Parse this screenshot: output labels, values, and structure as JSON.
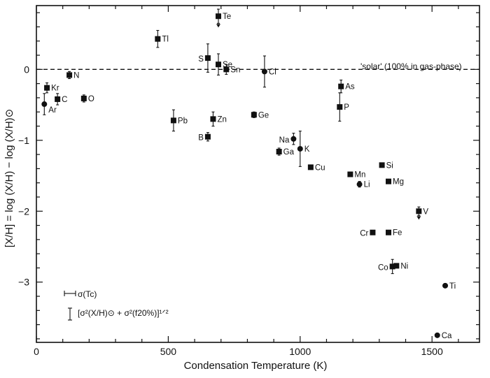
{
  "chart_data": {
    "type": "scatter",
    "xlabel": "Condensation Temperature (K)",
    "ylabel": "[X/H] = log (X/H) − log (X/H)⊙",
    "xlim": [
      0,
      1680
    ],
    "ylim": [
      -3.85,
      0.9
    ],
    "xticks": [
      0,
      500,
      1000,
      1500
    ],
    "yticks": [
      0,
      -1,
      -2,
      -3
    ],
    "reference_line": {
      "y": 0,
      "label": "'solar' (100% in gas-phase)"
    },
    "legend_notes": {
      "x_error": "σ(Tc)",
      "y_error": "[σ²(X/H)⊙ + σ²(f20%)]¹ᐟ²"
    },
    "points": [
      {
        "label": "Te",
        "x": 690,
        "y": 0.75,
        "marker": "square",
        "err": 0.1,
        "upper_limit": true
      },
      {
        "label": "Tl",
        "x": 460,
        "y": 0.43,
        "marker": "square",
        "err": 0.12
      },
      {
        "label": "S",
        "x": 650,
        "y": 0.16,
        "marker": "square",
        "err": 0.2
      },
      {
        "label": "Se",
        "x": 690,
        "y": 0.07,
        "marker": "square",
        "err": 0.15
      },
      {
        "label": "Sn",
        "x": 720,
        "y": 0.0,
        "marker": "square",
        "err": 0.07
      },
      {
        "label": "Cl",
        "x": 865,
        "y": -0.03,
        "marker": "circle",
        "err": 0.22
      },
      {
        "label": "N",
        "x": 125,
        "y": -0.08,
        "marker": "square",
        "err": 0.05
      },
      {
        "label": "Kr",
        "x": 40,
        "y": -0.26,
        "marker": "square",
        "err": 0.07
      },
      {
        "label": "C",
        "x": 80,
        "y": -0.42,
        "marker": "square",
        "err": 0.08
      },
      {
        "label": "O",
        "x": 180,
        "y": -0.41,
        "marker": "square",
        "err": 0.05
      },
      {
        "label": "Ar",
        "x": 30,
        "y": -0.49,
        "marker": "circle",
        "err": 0.15
      },
      {
        "label": "As",
        "x": 1155,
        "y": -0.24,
        "marker": "square",
        "err": 0.09
      },
      {
        "label": "P",
        "x": 1150,
        "y": -0.53,
        "marker": "square",
        "err": 0.2
      },
      {
        "label": "Ge",
        "x": 825,
        "y": -0.64,
        "marker": "square",
        "err": 0.04
      },
      {
        "label": "Pb",
        "x": 520,
        "y": -0.72,
        "marker": "square",
        "err": 0.15
      },
      {
        "label": "Zn",
        "x": 670,
        "y": -0.7,
        "marker": "square",
        "err": 0.1
      },
      {
        "label": "B",
        "x": 650,
        "y": -0.95,
        "marker": "square",
        "err": 0.06
      },
      {
        "label": "Na",
        "x": 975,
        "y": -0.98,
        "marker": "circle",
        "err": 0.08
      },
      {
        "label": "K",
        "x": 1000,
        "y": -1.12,
        "marker": "circle",
        "err": 0.25
      },
      {
        "label": "Ga",
        "x": 920,
        "y": -1.16,
        "marker": "square",
        "err": 0.05
      },
      {
        "label": "Cu",
        "x": 1040,
        "y": -1.38,
        "marker": "square",
        "err": 0.03
      },
      {
        "label": "Mn",
        "x": 1190,
        "y": -1.48,
        "marker": "square",
        "err": 0.03
      },
      {
        "label": "Li",
        "x": 1225,
        "y": -1.62,
        "marker": "circle",
        "err": 0.04
      },
      {
        "label": "Si",
        "x": 1310,
        "y": -1.35,
        "marker": "square",
        "err": 0.03
      },
      {
        "label": "Mg",
        "x": 1335,
        "y": -1.58,
        "marker": "square",
        "err": 0.03
      },
      {
        "label": "V",
        "x": 1450,
        "y": -2.0,
        "marker": "square",
        "err": 0.06,
        "upper_limit": true
      },
      {
        "label": "Cr",
        "x": 1275,
        "y": -2.3,
        "marker": "square",
        "err": 0.03
      },
      {
        "label": "Fe",
        "x": 1335,
        "y": -2.3,
        "marker": "square",
        "err": 0.03
      },
      {
        "label": "Co",
        "x": 1350,
        "y": -2.78,
        "marker": "square",
        "err": 0.1
      },
      {
        "label": "Ni",
        "x": 1365,
        "y": -2.77,
        "marker": "square",
        "err": 0.03
      },
      {
        "label": "Ti",
        "x": 1550,
        "y": -3.05,
        "marker": "circle",
        "err": 0.0
      },
      {
        "label": "Ca",
        "x": 1520,
        "y": -3.75,
        "marker": "circle",
        "err": 0.0
      }
    ]
  }
}
